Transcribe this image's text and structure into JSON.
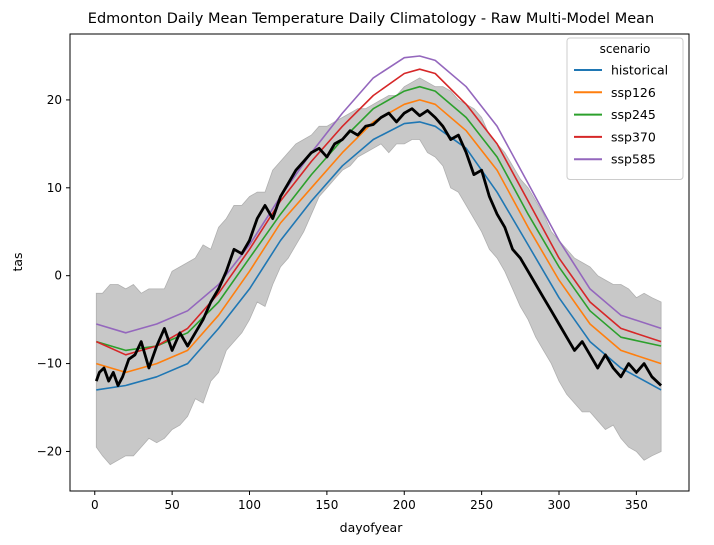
{
  "chart_data": {
    "type": "line",
    "title": "Edmonton Daily Mean Temperature Daily Climatology - Raw Multi-Model Mean",
    "xlabel": "dayofyear",
    "ylabel": "tas",
    "xlim": [
      -16,
      384
    ],
    "ylim": [
      -24.5,
      27.5
    ],
    "xticks": [
      0,
      50,
      100,
      150,
      200,
      250,
      300,
      350
    ],
    "yticks": [
      -20,
      -10,
      0,
      10,
      20
    ],
    "grid": false,
    "legend": {
      "title": "scenario",
      "placement": "top-right"
    },
    "series": [
      {
        "name": "historical",
        "color": "#1f77b4",
        "x": [
          1,
          20,
          40,
          60,
          80,
          100,
          120,
          140,
          160,
          180,
          200,
          210,
          220,
          240,
          260,
          280,
          300,
          320,
          340,
          366
        ],
        "y": [
          -13.0,
          -12.5,
          -11.5,
          -10.0,
          -6.0,
          -1.5,
          4.0,
          8.5,
          12.5,
          15.5,
          17.3,
          17.5,
          17.0,
          14.5,
          9.5,
          3.5,
          -2.5,
          -7.5,
          -10.5,
          -13.0
        ]
      },
      {
        "name": "ssp126",
        "color": "#ff7f0e",
        "x": [
          1,
          20,
          40,
          60,
          80,
          100,
          120,
          140,
          160,
          180,
          200,
          210,
          220,
          240,
          260,
          280,
          300,
          320,
          340,
          366
        ],
        "y": [
          -10.0,
          -11.0,
          -10.0,
          -8.5,
          -4.5,
          0.5,
          6.0,
          10.0,
          14.0,
          17.5,
          19.5,
          20.0,
          19.5,
          16.5,
          12.0,
          5.5,
          -0.5,
          -5.5,
          -8.5,
          -10.0
        ]
      },
      {
        "name": "ssp245",
        "color": "#2ca02c",
        "x": [
          1,
          20,
          40,
          60,
          80,
          100,
          120,
          140,
          160,
          180,
          200,
          210,
          220,
          240,
          260,
          280,
          300,
          320,
          340,
          366
        ],
        "y": [
          -7.5,
          -8.5,
          -8.0,
          -6.5,
          -3.0,
          2.0,
          7.0,
          11.5,
          15.5,
          19.0,
          21.0,
          21.5,
          21.0,
          18.0,
          13.5,
          7.0,
          1.0,
          -4.0,
          -7.0,
          -8.0
        ]
      },
      {
        "name": "ssp370",
        "color": "#d62728",
        "x": [
          1,
          20,
          40,
          60,
          80,
          100,
          120,
          140,
          160,
          180,
          200,
          210,
          220,
          240,
          260,
          280,
          300,
          320,
          340,
          366
        ],
        "y": [
          -7.5,
          -9.0,
          -8.0,
          -6.0,
          -2.0,
          3.0,
          8.5,
          13.0,
          17.0,
          20.5,
          23.0,
          23.5,
          23.0,
          19.5,
          15.0,
          8.5,
          2.0,
          -3.0,
          -6.0,
          -7.5
        ]
      },
      {
        "name": "ssp585",
        "color": "#9467bd",
        "x": [
          1,
          20,
          40,
          60,
          80,
          100,
          120,
          140,
          160,
          180,
          200,
          210,
          220,
          240,
          260,
          280,
          300,
          320,
          340,
          366
        ],
        "y": [
          -5.5,
          -6.5,
          -5.5,
          -4.0,
          -1.0,
          3.5,
          9.0,
          14.0,
          18.5,
          22.5,
          24.8,
          25.0,
          24.5,
          21.5,
          17.0,
          10.5,
          4.0,
          -1.5,
          -4.5,
          -6.0
        ]
      }
    ],
    "observed": {
      "color": "#000000",
      "x": [
        1,
        3,
        6,
        9,
        12,
        15,
        18,
        22,
        26,
        30,
        35,
        40,
        45,
        50,
        55,
        60,
        65,
        70,
        75,
        80,
        85,
        90,
        95,
        100,
        105,
        110,
        115,
        120,
        125,
        130,
        135,
        140,
        145,
        150,
        155,
        160,
        165,
        170,
        175,
        180,
        185,
        190,
        195,
        200,
        205,
        210,
        215,
        220,
        225,
        230,
        235,
        240,
        245,
        250,
        255,
        260,
        265,
        270,
        275,
        280,
        285,
        290,
        295,
        300,
        305,
        310,
        315,
        320,
        325,
        330,
        335,
        340,
        345,
        350,
        355,
        360,
        366
      ],
      "y": [
        -12.0,
        -11.0,
        -10.5,
        -12.0,
        -11.0,
        -12.5,
        -11.5,
        -9.5,
        -9.0,
        -7.5,
        -10.5,
        -8.0,
        -6.0,
        -8.5,
        -6.5,
        -8.0,
        -6.5,
        -5.0,
        -3.0,
        -1.5,
        0.5,
        3.0,
        2.5,
        4.0,
        6.5,
        8.0,
        6.5,
        9.0,
        10.5,
        12.0,
        13.0,
        14.0,
        14.5,
        13.5,
        15.0,
        15.5,
        16.5,
        16.0,
        17.0,
        17.2,
        18.0,
        18.5,
        17.5,
        18.5,
        19.0,
        18.2,
        18.8,
        18.0,
        17.0,
        15.5,
        16.0,
        14.0,
        11.5,
        12.0,
        9.0,
        7.0,
        5.5,
        3.0,
        2.0,
        0.5,
        -1.0,
        -2.5,
        -4.0,
        -5.5,
        -7.0,
        -8.5,
        -7.5,
        -9.0,
        -10.5,
        -9.0,
        -10.5,
        -11.5,
        -10.0,
        -11.0,
        -10.0,
        -11.5,
        -12.5
      ]
    },
    "band": {
      "color": "#c8c8c8",
      "x": [
        1,
        5,
        10,
        15,
        20,
        25,
        30,
        35,
        40,
        45,
        50,
        55,
        60,
        65,
        70,
        75,
        80,
        85,
        90,
        95,
        100,
        105,
        110,
        115,
        120,
        125,
        130,
        135,
        140,
        145,
        150,
        155,
        160,
        165,
        170,
        175,
        180,
        185,
        190,
        195,
        200,
        205,
        210,
        215,
        220,
        225,
        230,
        235,
        240,
        245,
        250,
        255,
        260,
        265,
        270,
        275,
        280,
        285,
        290,
        295,
        300,
        305,
        310,
        315,
        320,
        325,
        330,
        335,
        340,
        345,
        350,
        355,
        360,
        366
      ],
      "upper": [
        -2.0,
        -2.0,
        -1.0,
        -1.0,
        -1.5,
        -1.0,
        -2.0,
        -1.5,
        -1.5,
        -1.5,
        0.5,
        1.0,
        1.5,
        2.0,
        3.5,
        3.0,
        5.5,
        6.5,
        8.0,
        8.0,
        9.0,
        9.5,
        9.5,
        12.0,
        13.0,
        14.0,
        15.0,
        15.5,
        16.0,
        17.0,
        17.0,
        17.5,
        18.0,
        18.5,
        19.0,
        19.0,
        19.5,
        20.0,
        20.5,
        20.5,
        21.5,
        22.0,
        22.5,
        22.0,
        21.5,
        21.5,
        21.0,
        20.0,
        19.5,
        19.0,
        18.0,
        16.0,
        15.0,
        14.0,
        12.5,
        11.0,
        10.0,
        8.5,
        7.0,
        5.0,
        4.0,
        3.0,
        2.0,
        1.5,
        1.0,
        0.0,
        -0.5,
        -1.0,
        -1.0,
        -1.5,
        -2.5,
        -2.0,
        -2.5,
        -3.0
      ],
      "lower": [
        -19.5,
        -20.5,
        -21.5,
        -21.0,
        -20.5,
        -20.5,
        -19.5,
        -18.5,
        -19.0,
        -18.5,
        -17.5,
        -17.0,
        -16.0,
        -14.0,
        -14.5,
        -12.0,
        -11.0,
        -8.5,
        -7.5,
        -6.5,
        -5.0,
        -3.0,
        -3.5,
        -1.0,
        1.0,
        2.0,
        3.5,
        5.0,
        7.0,
        9.0,
        10.0,
        11.0,
        12.0,
        12.5,
        13.5,
        14.0,
        14.5,
        15.0,
        14.0,
        15.0,
        15.0,
        15.5,
        15.5,
        14.0,
        13.5,
        12.5,
        10.0,
        9.5,
        8.0,
        6.5,
        5.0,
        3.0,
        2.0,
        0.5,
        -1.5,
        -3.5,
        -5.0,
        -7.0,
        -8.5,
        -10.0,
        -12.0,
        -13.5,
        -14.5,
        -15.5,
        -15.5,
        -16.5,
        -17.5,
        -17.0,
        -18.5,
        -19.5,
        -20.0,
        -21.0,
        -20.5,
        -20.0
      ]
    }
  }
}
